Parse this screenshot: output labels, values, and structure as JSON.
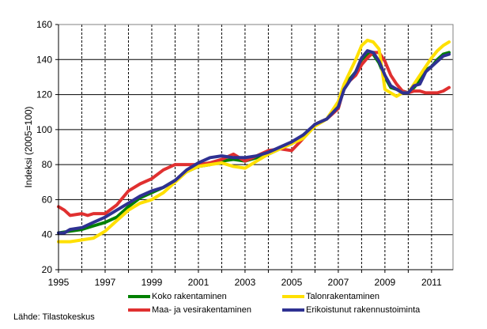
{
  "chart_data": {
    "type": "line",
    "title": "",
    "xlabel": "",
    "ylabel": "Indeksi (2005=100)",
    "xlim": [
      1995,
      2011.92
    ],
    "ylim": [
      20,
      160
    ],
    "yticks": [
      "20",
      "40",
      "60",
      "80",
      "100",
      "120",
      "140",
      "160"
    ],
    "xticks": [
      "1995",
      "1997",
      "1999",
      "2001",
      "2003",
      "2005",
      "2007",
      "2009",
      "2011"
    ],
    "grid": {
      "horizontal": "solid",
      "vertical": "dashed yearly"
    },
    "legend_position": "bottom",
    "source": "Lähde: Tilastokeskus",
    "series": [
      {
        "name": "Koko rakentaminen",
        "color": "#008000",
        "x": [
          1995,
          1995.5,
          1996,
          1996.5,
          1997,
          1997.5,
          1998,
          1998.5,
          1999,
          1999.5,
          2000,
          2000.5,
          2001,
          2001.5,
          2002,
          2002.5,
          2003,
          2003.5,
          2004,
          2004.5,
          2005,
          2005.5,
          2006,
          2006.5,
          2007,
          2007.25,
          2007.5,
          2007.75,
          2008,
          2008.25,
          2008.5,
          2008.75,
          2009,
          2009.25,
          2009.5,
          2009.75,
          2010,
          2010.25,
          2010.5,
          2010.75,
          2011,
          2011.25,
          2011.5,
          2011.75
        ],
        "y": [
          41,
          42,
          43,
          45,
          47,
          50,
          56,
          61,
          64,
          67,
          71,
          76,
          79,
          80,
          82,
          83,
          82,
          84,
          86,
          89,
          92,
          96,
          103,
          106,
          114,
          124,
          129,
          133,
          140,
          143,
          143,
          138,
          130,
          124,
          123,
          122,
          121,
          124,
          128,
          134,
          136,
          140,
          143,
          144
        ]
      },
      {
        "name": "Talonrakentaminen",
        "color": "#FFE000",
        "x": [
          1995,
          1995.5,
          1996,
          1996.5,
          1997,
          1997.5,
          1998,
          1998.5,
          1999,
          1999.5,
          2000,
          2000.5,
          2001,
          2001.5,
          2002,
          2002.5,
          2003,
          2003.5,
          2004,
          2004.5,
          2005,
          2005.5,
          2006,
          2006.5,
          2007,
          2007.25,
          2007.5,
          2007.75,
          2008,
          2008.25,
          2008.5,
          2008.75,
          2009,
          2009.25,
          2009.5,
          2009.75,
          2010,
          2010.25,
          2010.5,
          2010.75,
          2011,
          2011.25,
          2011.5,
          2011.75
        ],
        "y": [
          36,
          36,
          37,
          38,
          42,
          48,
          54,
          58,
          60,
          64,
          70,
          76,
          79,
          80,
          81,
          79,
          78,
          82,
          86,
          89,
          92,
          95,
          102,
          106,
          116,
          126,
          133,
          140,
          148,
          151,
          150,
          146,
          123,
          121,
          119,
          121,
          121,
          126,
          131,
          136,
          141,
          145,
          148,
          150
        ]
      },
      {
        "name": "Maa- ja vesirakentaminen",
        "color": "#E03030",
        "x": [
          1995,
          1995.25,
          1995.5,
          1996,
          1996.25,
          1996.5,
          1997,
          1997.5,
          1998,
          1998.5,
          1999,
          1999.5,
          2000,
          2000.5,
          2001,
          2001.5,
          2002,
          2002.5,
          2003,
          2003.5,
          2004,
          2004.5,
          2005,
          2005.5,
          2006,
          2006.5,
          2007,
          2007.25,
          2007.5,
          2007.75,
          2008,
          2008.25,
          2008.5,
          2008.75,
          2009,
          2009.25,
          2009.5,
          2009.75,
          2010,
          2010.25,
          2010.5,
          2010.75,
          2011,
          2011.25,
          2011.5,
          2011.75
        ],
        "y": [
          56,
          54,
          51,
          52,
          51,
          52,
          52,
          57,
          65,
          69,
          72,
          77,
          80,
          80,
          80,
          81,
          83,
          86,
          82,
          85,
          88,
          89,
          88,
          95,
          103,
          106,
          112,
          124,
          128,
          131,
          137,
          141,
          144,
          144,
          139,
          131,
          126,
          122,
          121,
          122,
          122,
          121,
          121,
          121,
          122,
          124
        ]
      },
      {
        "name": "Erikoistunut rakennustoiminta",
        "color": "#2E3192",
        "x": [
          1995,
          1995.25,
          1995.5,
          1996,
          1996.5,
          1997,
          1997.5,
          1998,
          1998.5,
          1999,
          1999.5,
          2000,
          2000.5,
          2001,
          2001.5,
          2002,
          2002.5,
          2003,
          2003.5,
          2004,
          2004.5,
          2005,
          2005.5,
          2006,
          2006.5,
          2007,
          2007.25,
          2007.5,
          2007.75,
          2008,
          2008.25,
          2008.5,
          2008.75,
          2009,
          2009.25,
          2009.5,
          2009.75,
          2010,
          2010.25,
          2010.5,
          2010.75,
          2011,
          2011.25,
          2011.5,
          2011.75
        ],
        "y": [
          41,
          41,
          43,
          44,
          47,
          50,
          54,
          58,
          62,
          65,
          67,
          71,
          77,
          81,
          84,
          85,
          84,
          84,
          85,
          87,
          90,
          93,
          97,
          103,
          106,
          113,
          123,
          128,
          133,
          141,
          145,
          144,
          139,
          131,
          125,
          123,
          121,
          121,
          125,
          126,
          133,
          136,
          139,
          142,
          143
        ]
      }
    ]
  }
}
